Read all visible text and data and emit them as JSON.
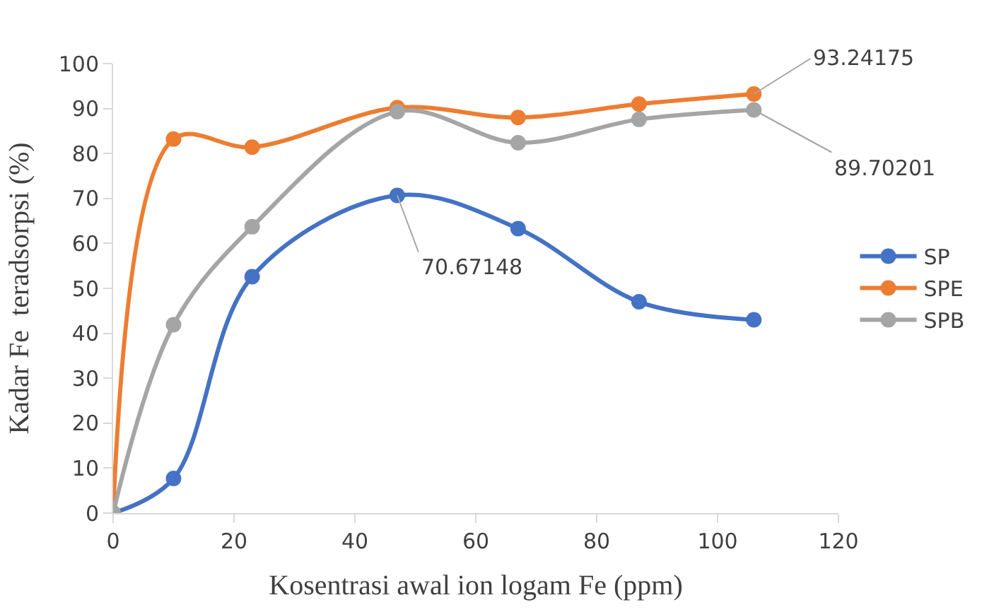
{
  "chart_data": {
    "type": "line",
    "xlabel": "Kosentrasi awal ion logam Fe (ppm)",
    "ylabel": "Kadar Fe  teradsorpsi (%)",
    "x": [
      0,
      10,
      23,
      47,
      67,
      87,
      106
    ],
    "series": [
      {
        "name": "SP",
        "color": "#4472c4",
        "values": [
          0,
          7.7,
          52.6,
          70.67148,
          63.3,
          47.0,
          43.0
        ],
        "value_labels": [
          null,
          null,
          null,
          "70.67148",
          null,
          null,
          null
        ]
      },
      {
        "name": "SPE",
        "color": "#ed7d31",
        "values": [
          0,
          83.2,
          81.4,
          90.2,
          88.0,
          91.0,
          93.24175
        ],
        "value_labels": [
          null,
          null,
          null,
          null,
          null,
          null,
          "93.24175"
        ]
      },
      {
        "name": "SPB",
        "color": "#a5a5a5",
        "values": [
          0,
          41.9,
          63.7,
          89.3,
          82.4,
          87.6,
          89.70201
        ],
        "value_labels": [
          null,
          null,
          null,
          null,
          null,
          null,
          "89.70201"
        ]
      }
    ],
    "xlim": [
      0,
      120
    ],
    "xticks": [
      0,
      20,
      40,
      60,
      80,
      100,
      120
    ],
    "ylim": [
      0,
      100
    ],
    "yticks": [
      0,
      10,
      20,
      30,
      40,
      50,
      60,
      70,
      80,
      90,
      100
    ],
    "legend": "right",
    "marker": "circle",
    "line_style": "solid"
  }
}
